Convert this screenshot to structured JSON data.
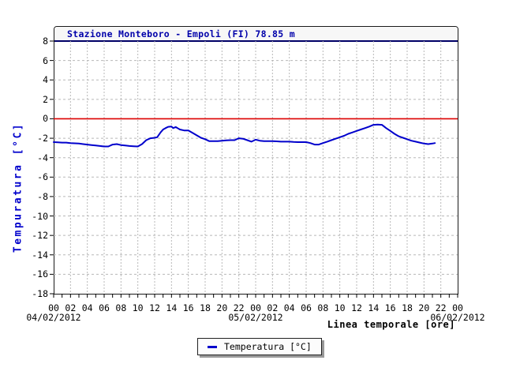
{
  "title": "Stazione Monteboro - Empoli (FI) 78.85 m",
  "legend": {
    "label": "Temperatura [&deg;C]",
    "label_plain": "Temperatura [°C]"
  },
  "colors": {
    "title_text": "#0000aa",
    "y_axis_label": "#0000cc",
    "series_line": "#0000cc",
    "zero_line": "#dd0000",
    "gridline": "#b8b8b8",
    "frame_border": "#1a1a1a",
    "title_separator": "#000066",
    "title_bar_bg": "#f7f7f7",
    "legend_shadow": "#999999"
  },
  "chart_data": {
    "type": "line",
    "title": "Stazione Monteboro - Empoli (FI) 78.85 m",
    "ylabel": "Tempuratura [°C]",
    "xlabel": "Linea temporale [ore]",
    "ylim": [
      -18,
      8
    ],
    "y_tick_step": 2,
    "y_ticks": [
      8,
      6,
      4,
      2,
      0,
      -2,
      -4,
      -6,
      -8,
      -10,
      -12,
      -14,
      -16,
      -18
    ],
    "x_hours_range": [
      0,
      48
    ],
    "x_minor_tick_step_hours": 1,
    "x_label_step_hours": 2,
    "x_tick_labels": [
      "00",
      "02",
      "04",
      "06",
      "08",
      "10",
      "12",
      "14",
      "16",
      "18",
      "20",
      "22",
      "00",
      "02",
      "04",
      "06",
      "08",
      "10",
      "12",
      "14",
      "16",
      "18",
      "20",
      "22",
      "00"
    ],
    "date_labels": [
      {
        "text": "04/02/2012",
        "hour": 0
      },
      {
        "text": "05/02/2012",
        "hour": 24
      },
      {
        "text": "06/02/2012",
        "hour": 48
      }
    ],
    "grid": true,
    "zero_line_value": 0,
    "legend_position": "bottom-center",
    "legend_entries": [
      "Temperatura [°C]"
    ],
    "series": [
      {
        "name": "Temperatura [°C]",
        "color": "#0000cc",
        "points": [
          [
            0,
            -2.4
          ],
          [
            0.5,
            -2.42
          ],
          [
            1,
            -2.45
          ],
          [
            1.5,
            -2.45
          ],
          [
            2,
            -2.5
          ],
          [
            2.5,
            -2.52
          ],
          [
            3,
            -2.55
          ],
          [
            3.5,
            -2.6
          ],
          [
            4,
            -2.65
          ],
          [
            4.5,
            -2.7
          ],
          [
            5,
            -2.75
          ],
          [
            5.5,
            -2.8
          ],
          [
            6,
            -2.85
          ],
          [
            6.5,
            -2.85
          ],
          [
            7,
            -2.65
          ],
          [
            7.5,
            -2.6
          ],
          [
            8,
            -2.7
          ],
          [
            8.5,
            -2.75
          ],
          [
            9,
            -2.8
          ],
          [
            9.5,
            -2.82
          ],
          [
            10,
            -2.85
          ],
          [
            10.5,
            -2.6
          ],
          [
            11,
            -2.2
          ],
          [
            11.5,
            -2.0
          ],
          [
            12,
            -1.95
          ],
          [
            12.3,
            -1.9
          ],
          [
            12.7,
            -1.4
          ],
          [
            13,
            -1.1
          ],
          [
            13.3,
            -0.95
          ],
          [
            13.6,
            -0.82
          ],
          [
            14,
            -0.8
          ],
          [
            14.2,
            -0.95
          ],
          [
            14.5,
            -0.85
          ],
          [
            14.8,
            -1.0
          ],
          [
            15,
            -1.1
          ],
          [
            15.5,
            -1.2
          ],
          [
            16,
            -1.2
          ],
          [
            16.5,
            -1.45
          ],
          [
            17,
            -1.7
          ],
          [
            17.5,
            -1.95
          ],
          [
            18,
            -2.1
          ],
          [
            18.5,
            -2.3
          ],
          [
            19,
            -2.3
          ],
          [
            19.5,
            -2.3
          ],
          [
            20,
            -2.25
          ],
          [
            20.5,
            -2.22
          ],
          [
            21,
            -2.2
          ],
          [
            21.5,
            -2.2
          ],
          [
            22,
            -2.0
          ],
          [
            22.5,
            -2.05
          ],
          [
            23,
            -2.2
          ],
          [
            23.5,
            -2.35
          ],
          [
            24,
            -2.15
          ],
          [
            24.5,
            -2.25
          ],
          [
            25,
            -2.3
          ],
          [
            25.5,
            -2.3
          ],
          [
            26,
            -2.3
          ],
          [
            26.5,
            -2.32
          ],
          [
            27,
            -2.35
          ],
          [
            27.5,
            -2.35
          ],
          [
            28,
            -2.35
          ],
          [
            28.5,
            -2.38
          ],
          [
            29,
            -2.4
          ],
          [
            29.5,
            -2.4
          ],
          [
            30,
            -2.4
          ],
          [
            30.5,
            -2.5
          ],
          [
            31,
            -2.65
          ],
          [
            31.5,
            -2.65
          ],
          [
            32,
            -2.5
          ],
          [
            32.5,
            -2.35
          ],
          [
            33,
            -2.2
          ],
          [
            33.5,
            -2.05
          ],
          [
            34,
            -1.9
          ],
          [
            34.5,
            -1.75
          ],
          [
            35,
            -1.55
          ],
          [
            35.5,
            -1.4
          ],
          [
            36,
            -1.25
          ],
          [
            36.5,
            -1.1
          ],
          [
            37,
            -0.95
          ],
          [
            37.5,
            -0.8
          ],
          [
            38,
            -0.62
          ],
          [
            38.5,
            -0.6
          ],
          [
            39,
            -0.62
          ],
          [
            39.5,
            -0.95
          ],
          [
            40,
            -1.25
          ],
          [
            40.5,
            -1.55
          ],
          [
            41,
            -1.8
          ],
          [
            41.5,
            -1.95
          ],
          [
            42,
            -2.1
          ],
          [
            42.5,
            -2.25
          ],
          [
            43,
            -2.35
          ],
          [
            43.5,
            -2.45
          ],
          [
            44,
            -2.55
          ],
          [
            44.5,
            -2.6
          ],
          [
            45,
            -2.55
          ],
          [
            45.3,
            -2.5
          ]
        ]
      }
    ]
  }
}
